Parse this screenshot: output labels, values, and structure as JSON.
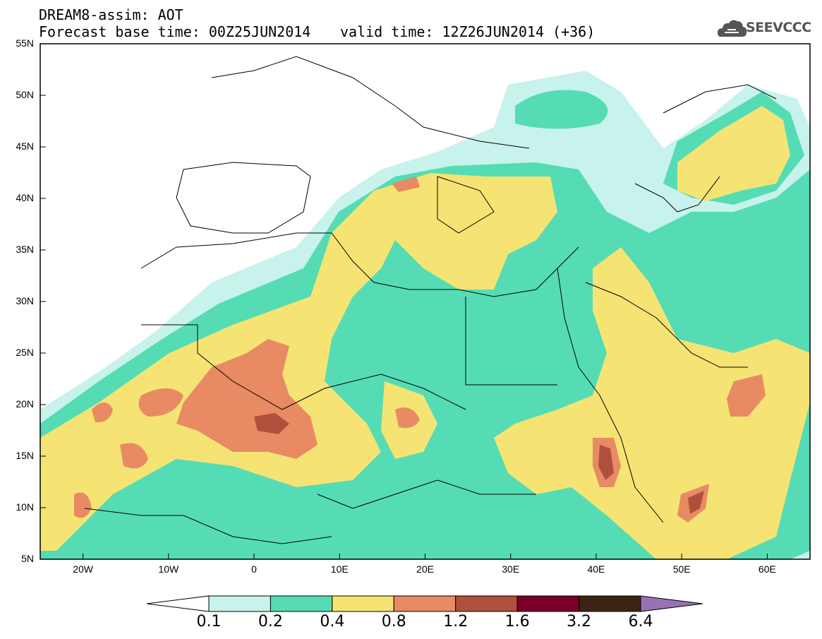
{
  "header": {
    "title_line1": "DREAM8-assim: AOT",
    "title_line2": "Forecast base time: 00Z25JUN2014",
    "valid_time": "valid time: 12Z26JUN2014 (+36)",
    "logo_text": "SEEVCCC"
  },
  "map": {
    "lat_labels": [
      "55N",
      "50N",
      "45N",
      "40N",
      "35N",
      "30N",
      "25N",
      "20N",
      "15N",
      "10N",
      "5N"
    ],
    "lon_labels": [
      "20W",
      "10W",
      "0",
      "10E",
      "20E",
      "30E",
      "40E",
      "50E",
      "60E"
    ],
    "lon_range": [
      -25,
      65
    ],
    "lat_range": [
      5,
      55
    ]
  },
  "colorbar": {
    "labels": [
      "0.1",
      "0.2",
      "0.4",
      "0.8",
      "1.2",
      "1.6",
      "3.2",
      "6.4"
    ],
    "colors": [
      "#ffffff",
      "#c8f2ec",
      "#55dcb4",
      "#f5e474",
      "#e88a64",
      "#b0503c",
      "#7a0028",
      "#3c2414",
      "#9a72b4"
    ]
  }
}
